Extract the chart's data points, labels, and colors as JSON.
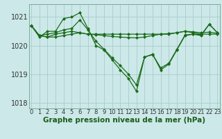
{
  "title": "",
  "xlabel": "Graphe pression niveau de la mer (hPa)",
  "ylabel": "",
  "background_color": "#cce8e8",
  "plot_bg_color": "#cce8e8",
  "grid_color": "#aacccc",
  "line_color": "#1a6b1a",
  "xlim": [
    -0.3,
    23.3
  ],
  "ylim": [
    1017.8,
    1021.45
  ],
  "yticks": [
    1018,
    1019,
    1020,
    1021
  ],
  "ytick_labels": [
    "1018",
    "1019",
    "1020",
    "1021"
  ],
  "xticks": [
    0,
    1,
    2,
    3,
    4,
    5,
    6,
    7,
    8,
    9,
    10,
    11,
    12,
    13,
    14,
    15,
    16,
    17,
    18,
    19,
    20,
    21,
    22,
    23
  ],
  "series": [
    [
      1020.7,
      1020.35,
      1020.3,
      1020.3,
      1020.35,
      1020.4,
      1020.45,
      1020.4,
      1020.4,
      1020.4,
      1020.4,
      1020.4,
      1020.4,
      1020.4,
      1020.4,
      1020.4,
      1020.4,
      1020.4,
      1020.45,
      1020.5,
      1020.45,
      1020.4,
      1020.4,
      1020.4
    ],
    [
      1020.7,
      1020.35,
      1020.3,
      1020.4,
      1020.45,
      1020.5,
      1020.45,
      1020.4,
      1020.38,
      1020.35,
      1020.32,
      1020.3,
      1020.28,
      1020.27,
      1020.3,
      1020.35,
      1020.4,
      1020.42,
      1020.45,
      1020.5,
      1020.48,
      1020.45,
      1020.47,
      1020.43
    ],
    [
      1020.7,
      1020.3,
      1020.5,
      1020.5,
      1020.95,
      1021.0,
      1021.15,
      1020.6,
      1020.0,
      1019.85,
      1019.5,
      1019.15,
      1018.85,
      1018.4,
      1019.6,
      1019.7,
      1019.15,
      1019.35,
      1019.85,
      1020.35,
      1020.4,
      1020.35,
      1020.75,
      1020.45
    ],
    [
      1020.7,
      1020.35,
      1020.4,
      1020.45,
      1020.55,
      1020.6,
      1020.9,
      1020.55,
      1020.15,
      1019.87,
      1019.57,
      1019.3,
      1019.0,
      1018.62,
      1019.6,
      1019.68,
      1019.22,
      1019.38,
      1019.87,
      1020.37,
      1020.4,
      1020.38,
      1020.75,
      1020.45
    ]
  ],
  "marker": "D",
  "markersize": 2.0,
  "linewidth": 0.9,
  "fontsize_xlabel": 7.5,
  "fontsize_ytick": 7,
  "fontsize_xtick": 6
}
